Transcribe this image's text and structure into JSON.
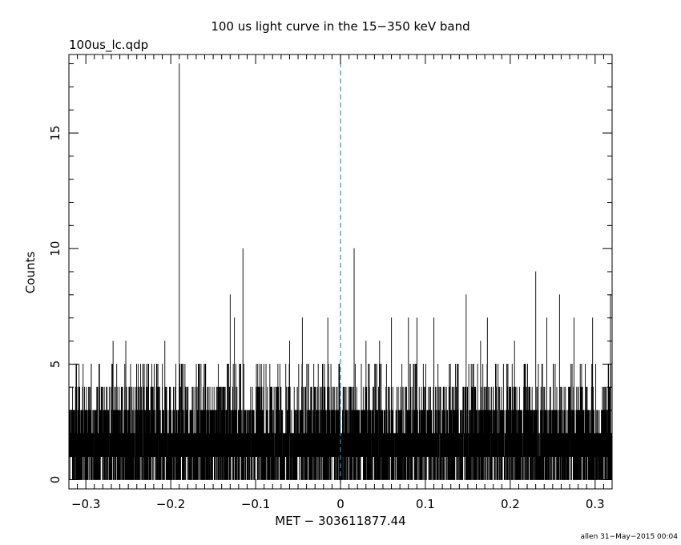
{
  "chart_data": {
    "type": "line",
    "title": "100 us light curve in the 15−350 keV band",
    "file_label": "100us_lc.qdp",
    "xlabel": "MET − 303611877.44",
    "ylabel": "Counts",
    "footer": "allen 31−May−2015 00:04",
    "xlim": [
      -0.32,
      0.32
    ],
    "ylim": [
      -0.4,
      18.4
    ],
    "bin_width": 0.0001,
    "xticks": [
      -0.3,
      -0.2,
      -0.1,
      0,
      0.1,
      0.2,
      0.3
    ],
    "xtick_labels": [
      "−0.3",
      "−0.2",
      "−0.1",
      "0",
      "0.1",
      "0.2",
      "0.3"
    ],
    "yticks": [
      0,
      5,
      10,
      15
    ],
    "ytick_labels": [
      "0",
      "5",
      "10",
      "15"
    ],
    "trigger_line_x": 0,
    "colors": {
      "data": "#000000",
      "trigger_line": "#2a8fd0",
      "frame": "#000000"
    },
    "peaks": [
      {
        "x": -0.19,
        "y": 18
      },
      {
        "x": -0.115,
        "y": 10
      },
      {
        "x": -0.13,
        "y": 8
      },
      {
        "x": 0.016,
        "y": 10
      },
      {
        "x": 0.23,
        "y": 9
      },
      {
        "x": 0.148,
        "y": 8
      },
      {
        "x": 0.258,
        "y": 8
      },
      {
        "x": 0.318,
        "y": 8
      },
      {
        "x": -0.125,
        "y": 7
      },
      {
        "x": -0.045,
        "y": 7
      },
      {
        "x": -0.015,
        "y": 7
      },
      {
        "x": 0.06,
        "y": 7
      },
      {
        "x": 0.08,
        "y": 7
      },
      {
        "x": 0.09,
        "y": 7
      },
      {
        "x": 0.11,
        "y": 7
      },
      {
        "x": 0.173,
        "y": 7
      },
      {
        "x": 0.243,
        "y": 7
      },
      {
        "x": 0.275,
        "y": 7
      },
      {
        "x": 0.297,
        "y": 7
      },
      {
        "x": -0.268,
        "y": 6
      },
      {
        "x": -0.253,
        "y": 6
      },
      {
        "x": -0.207,
        "y": 6
      },
      {
        "x": -0.06,
        "y": 6
      },
      {
        "x": 0.03,
        "y": 6
      },
      {
        "x": 0.046,
        "y": 6
      },
      {
        "x": 0.165,
        "y": 6
      },
      {
        "x": 0.205,
        "y": 6
      }
    ],
    "baseline": {
      "typical_range": [
        0,
        4
      ],
      "mean": 1.6
    }
  }
}
